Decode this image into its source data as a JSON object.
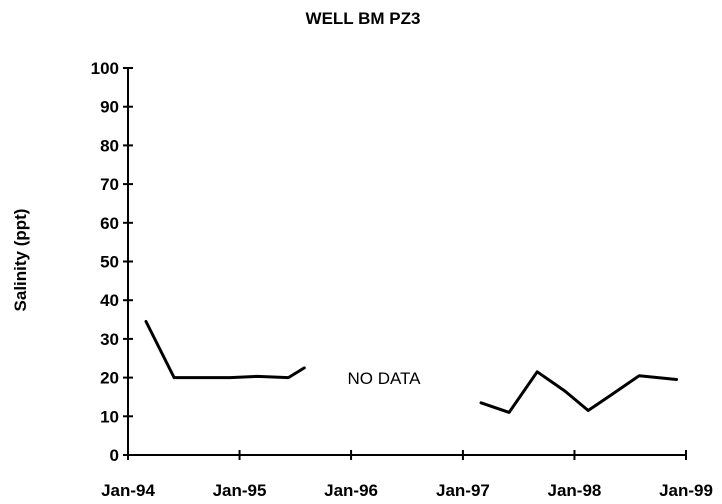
{
  "chart_data": {
    "type": "line",
    "title": "WELL BM PZ3",
    "xlabel": "",
    "ylabel": "Salinity (ppt)",
    "ylim": [
      0,
      100
    ],
    "yticks": [
      0,
      10,
      20,
      30,
      40,
      50,
      60,
      70,
      80,
      90,
      100
    ],
    "xlim": [
      "1994-01-01",
      "1999-01-01"
    ],
    "xticks": [
      "1994-01-01",
      "1995-01-01",
      "1996-01-01",
      "1997-01-01",
      "1998-01-01",
      "1999-01-01"
    ],
    "xtick_labels": [
      "Jan-94",
      "Jan-95",
      "Jan-96",
      "Jan-97",
      "Jan-98",
      "Jan-99"
    ],
    "annotation": "NO DATA",
    "grid": false,
    "legend": "none",
    "line_color": "#000000",
    "series": [
      {
        "segments": [
          [
            {
              "x": "1994-03-01",
              "y": 34.5
            },
            {
              "x": "1994-06-01",
              "y": 20
            },
            {
              "x": "1994-09-01",
              "y": 20
            },
            {
              "x": "1994-12-01",
              "y": 20
            },
            {
              "x": "1995-03-01",
              "y": 20.3
            },
            {
              "x": "1995-06-10",
              "y": 20
            },
            {
              "x": "1995-08-01",
              "y": 22.5
            }
          ],
          [
            {
              "x": "1997-03-01",
              "y": 13.5
            },
            {
              "x": "1997-06-01",
              "y": 11
            },
            {
              "x": "1997-09-01",
              "y": 21.5
            },
            {
              "x": "1997-12-01",
              "y": 16.5
            },
            {
              "x": "1998-02-15",
              "y": 11.5
            },
            {
              "x": "1998-05-01",
              "y": 15.5
            },
            {
              "x": "1998-08-01",
              "y": 20.5
            },
            {
              "x": "1998-12-01",
              "y": 19.5
            }
          ]
        ]
      }
    ]
  }
}
